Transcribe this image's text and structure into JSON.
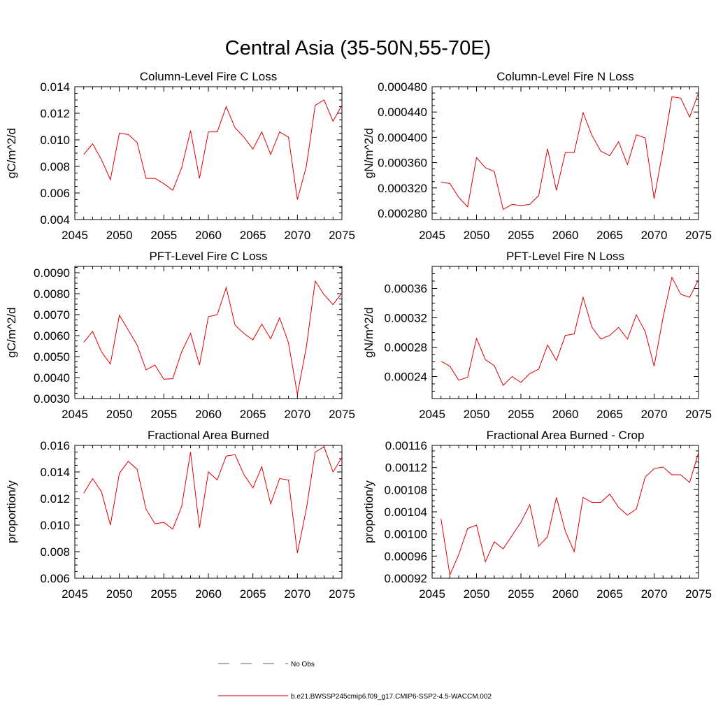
{
  "figure": {
    "title": "Central Asia (35-50N,55-70E)",
    "legend": [
      {
        "label": "No Obs",
        "color": "#5a5aa0",
        "style": "dashed"
      },
      {
        "label": "b.e21.BWSSP245cmip6.f09_g17.CMIP6-SSP2-4.5-WACCM.002",
        "color": "#e00000",
        "style": "solid"
      }
    ]
  },
  "chart_data": [
    {
      "type": "line",
      "title": "Column-Level Fire C Loss",
      "xlabel": "",
      "ylabel": "gC/m^2/d",
      "xlim": [
        2045,
        2075
      ],
      "ylim": [
        0.004,
        0.014
      ],
      "xticks": [
        "2045",
        "2050",
        "2055",
        "2060",
        "2065",
        "2070",
        "2075"
      ],
      "yticks": [
        "0.004",
        "0.006",
        "0.008",
        "0.010",
        "0.012",
        "0.014"
      ],
      "x": [
        2046,
        2047,
        2048,
        2049,
        2050,
        2051,
        2052,
        2053,
        2054,
        2055,
        2056,
        2057,
        2058,
        2059,
        2060,
        2061,
        2062,
        2063,
        2064,
        2065,
        2066,
        2067,
        2068,
        2069,
        2070,
        2071,
        2072,
        2073,
        2074,
        2075
      ],
      "series": [
        {
          "color": "#e00000",
          "values": [
            0.0089,
            0.0097,
            0.0085,
            0.007,
            0.0105,
            0.0104,
            0.0098,
            0.0071,
            0.0071,
            0.0067,
            0.0062,
            0.0079,
            0.0107,
            0.0071,
            0.0106,
            0.0106,
            0.0125,
            0.0109,
            0.0102,
            0.0093,
            0.0106,
            0.0089,
            0.0106,
            0.0102,
            0.0055,
            0.008,
            0.0126,
            0.013,
            0.0114,
            0.0126
          ]
        }
      ]
    },
    {
      "type": "line",
      "title": "Column-Level Fire N Loss",
      "xlabel": "",
      "ylabel": "gN/m^2/d",
      "xlim": [
        2045,
        2075
      ],
      "ylim": [
        0.00027,
        0.00048
      ],
      "xticks": [
        "2045",
        "2050",
        "2055",
        "2060",
        "2065",
        "2070",
        "2075"
      ],
      "yticks": [
        "0.000280",
        "0.000320",
        "0.000360",
        "0.000400",
        "0.000440",
        "0.000480"
      ],
      "x": [
        2046,
        2047,
        2048,
        2049,
        2050,
        2051,
        2052,
        2053,
        2054,
        2055,
        2056,
        2057,
        2058,
        2059,
        2060,
        2061,
        2062,
        2063,
        2064,
        2065,
        2066,
        2067,
        2068,
        2069,
        2070,
        2071,
        2072,
        2073,
        2074,
        2075
      ],
      "series": [
        {
          "color": "#e00000",
          "values": [
            0.000329,
            0.000327,
            0.000305,
            0.00029,
            0.000368,
            0.000352,
            0.000346,
            0.000286,
            0.000294,
            0.000292,
            0.000294,
            0.000308,
            0.000382,
            0.000316,
            0.000376,
            0.000376,
            0.000439,
            0.000403,
            0.000378,
            0.000371,
            0.000393,
            0.000357,
            0.000404,
            0.000399,
            0.000303,
            0.00038,
            0.000464,
            0.000462,
            0.000432,
            0.00047
          ]
        }
      ]
    },
    {
      "type": "line",
      "title": "PFT-Level Fire C Loss",
      "xlabel": "",
      "ylabel": "gC/m^2/d",
      "xlim": [
        2045,
        2075
      ],
      "ylim": [
        0.003,
        0.0093
      ],
      "xticks": [
        "2045",
        "2050",
        "2055",
        "2060",
        "2065",
        "2070",
        "2075"
      ],
      "yticks": [
        "0.0030",
        "0.0040",
        "0.0050",
        "0.0060",
        "0.0070",
        "0.0080",
        "0.0090"
      ],
      "x": [
        2046,
        2047,
        2048,
        2049,
        2050,
        2051,
        2052,
        2053,
        2054,
        2055,
        2056,
        2057,
        2058,
        2059,
        2060,
        2061,
        2062,
        2063,
        2064,
        2065,
        2066,
        2067,
        2068,
        2069,
        2070,
        2071,
        2072,
        2073,
        2074,
        2075
      ],
      "series": [
        {
          "color": "#e00000",
          "values": [
            0.00568,
            0.0062,
            0.00522,
            0.00465,
            0.00697,
            0.00627,
            0.00555,
            0.00437,
            0.0046,
            0.00392,
            0.00395,
            0.00523,
            0.00611,
            0.0046,
            0.0069,
            0.007,
            0.00829,
            0.0065,
            0.0061,
            0.0058,
            0.00655,
            0.00585,
            0.00685,
            0.00565,
            0.0032,
            0.00545,
            0.0086,
            0.00795,
            0.00748,
            0.00803
          ]
        }
      ]
    },
    {
      "type": "line",
      "title": "PFT-Level Fire N Loss",
      "xlabel": "",
      "ylabel": "gN/m^2/d",
      "xlim": [
        2045,
        2075
      ],
      "ylim": [
        0.00021,
        0.00039
      ],
      "xticks": [
        "2045",
        "2050",
        "2055",
        "2060",
        "2065",
        "2070",
        "2075"
      ],
      "yticks": [
        "0.00024",
        "0.00028",
        "0.00032",
        "0.00036"
      ],
      "x": [
        2046,
        2047,
        2048,
        2049,
        2050,
        2051,
        2052,
        2053,
        2054,
        2055,
        2056,
        2057,
        2058,
        2059,
        2060,
        2061,
        2062,
        2063,
        2064,
        2065,
        2066,
        2067,
        2068,
        2069,
        2070,
        2071,
        2072,
        2073,
        2074,
        2075
      ],
      "series": [
        {
          "color": "#e00000",
          "values": [
            0.000261,
            0.000254,
            0.000235,
            0.000239,
            0.000292,
            0.000263,
            0.000255,
            0.000228,
            0.00024,
            0.000232,
            0.000244,
            0.00025,
            0.000283,
            0.000262,
            0.000296,
            0.000298,
            0.000348,
            0.000307,
            0.000291,
            0.000296,
            0.000307,
            0.000291,
            0.000324,
            0.000301,
            0.000254,
            0.00032,
            0.000375,
            0.000352,
            0.000348,
            0.000372
          ]
        }
      ]
    },
    {
      "type": "line",
      "title": "Fractional Area Burned",
      "xlabel": "",
      "ylabel": "proportion/y",
      "xlim": [
        2045,
        2075
      ],
      "ylim": [
        0.006,
        0.016
      ],
      "xticks": [
        "2045",
        "2050",
        "2055",
        "2060",
        "2065",
        "2070",
        "2075"
      ],
      "yticks": [
        "0.006",
        "0.008",
        "0.010",
        "0.012",
        "0.014",
        "0.016"
      ],
      "x": [
        2046,
        2047,
        2048,
        2049,
        2050,
        2051,
        2052,
        2053,
        2054,
        2055,
        2056,
        2057,
        2058,
        2059,
        2060,
        2061,
        2062,
        2063,
        2064,
        2065,
        2066,
        2067,
        2068,
        2069,
        2070,
        2071,
        2072,
        2073,
        2074,
        2075
      ],
      "series": [
        {
          "color": "#e00000",
          "values": [
            0.0124,
            0.0135,
            0.0125,
            0.01,
            0.0139,
            0.0148,
            0.0142,
            0.0112,
            0.0101,
            0.0102,
            0.0097,
            0.0114,
            0.0155,
            0.0098,
            0.014,
            0.0134,
            0.0152,
            0.0153,
            0.0138,
            0.0128,
            0.0144,
            0.0116,
            0.0135,
            0.0134,
            0.0079,
            0.0112,
            0.0155,
            0.0159,
            0.014,
            0.0151
          ]
        }
      ]
    },
    {
      "type": "line",
      "title": "Fractional Area Burned - Crop",
      "xlabel": "",
      "ylabel": "proportion/y",
      "xlim": [
        2045,
        2075
      ],
      "ylim": [
        0.00092,
        0.00116
      ],
      "xticks": [
        "2045",
        "2050",
        "2055",
        "2060",
        "2065",
        "2070",
        "2075"
      ],
      "yticks": [
        "0.00092",
        "0.00096",
        "0.00100",
        "0.00104",
        "0.00108",
        "0.00112",
        "0.00116"
      ],
      "x": [
        2046,
        2047,
        2048,
        2049,
        2050,
        2051,
        2052,
        2053,
        2054,
        2055,
        2056,
        2057,
        2058,
        2059,
        2060,
        2061,
        2062,
        2063,
        2064,
        2065,
        2066,
        2067,
        2068,
        2069,
        2070,
        2071,
        2072,
        2073,
        2074,
        2075
      ],
      "series": [
        {
          "color": "#e00000",
          "values": [
            0.001027,
            0.000926,
            0.000963,
            0.00101,
            0.001016,
            0.00095,
            0.000986,
            0.000973,
            0.000997,
            0.001021,
            0.001053,
            0.000978,
            0.000995,
            0.001066,
            0.001005,
            0.000968,
            0.001066,
            0.001057,
            0.001057,
            0.001072,
            0.001048,
            0.001034,
            0.001045,
            0.001103,
            0.001118,
            0.001121,
            0.001107,
            0.001107,
            0.001093,
            0.001147
          ]
        }
      ]
    }
  ]
}
